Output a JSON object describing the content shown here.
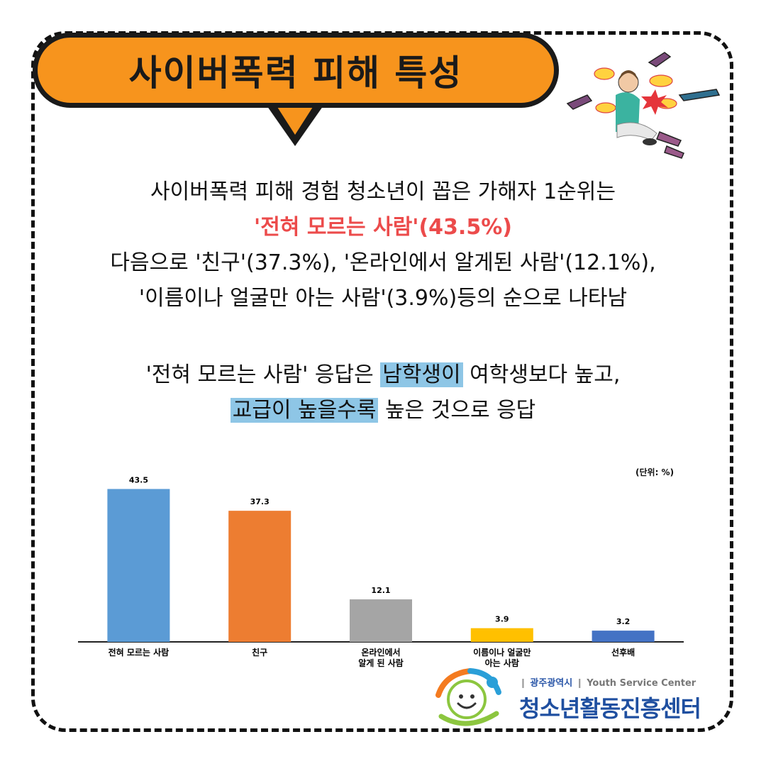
{
  "header": {
    "title": "사이버폭력 피해 특성"
  },
  "body": {
    "line1": "사이버폭력 피해 경험 청소년이 꼽은 가해자 1순위는",
    "line2": "'전혀 모르는 사람'(43.5%)",
    "line3": "다음으로 '친구'(37.3%), '온라인에서 알게된 사람'(12.1%),",
    "line4": "'이름이나 얼굴만 아는 사람'(3.9%)등의 순으로 나타남",
    "line5_a": "'전혀 모르는 사람' 응답은 ",
    "line5_hl": "남학생이",
    "line5_b": " 여학생보다 높고,",
    "line6_hl": "교급이 높을수록",
    "line6_b": " 높은 것으로 응답"
  },
  "chart_data": {
    "type": "bar",
    "unit_note": "(단위: %)",
    "categories": [
      [
        "전혀 모르는 사람"
      ],
      [
        "친구"
      ],
      [
        "온라인에서",
        "알게 된 사람"
      ],
      [
        "이름이나 얼굴만",
        "아는 사람"
      ],
      [
        "선후배"
      ]
    ],
    "values": [
      43.5,
      37.3,
      12.1,
      3.9,
      3.2
    ],
    "value_labels": [
      "43.5",
      "37.3",
      "12.1",
      "3.9",
      "3.2"
    ],
    "colors": [
      "#5b9bd5",
      "#ed7d31",
      "#a5a5a5",
      "#ffc000",
      "#4472c4"
    ],
    "ylim": [
      0,
      45
    ]
  },
  "logo": {
    "region": "광주광역시",
    "english": "Youth Service Center",
    "name": "청소년활동진흥센터"
  },
  "colors": {
    "title_bg": "#f7941d",
    "highlight_red": "#ec4b4b",
    "highlight_blue": "#8ec6e6",
    "logo_blue": "#1f4fa0"
  }
}
